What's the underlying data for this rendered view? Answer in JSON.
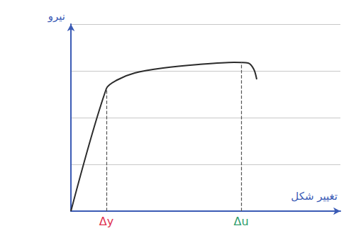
{
  "chart_data": {
    "type": "line",
    "xlabel": "تغییر شکل",
    "ylabel": "نیرو",
    "x": [
      0,
      50,
      65,
      90,
      130,
      180,
      230,
      250,
      258,
      262
    ],
    "values": [
      0,
      173,
      185,
      195,
      202,
      207,
      210,
      209,
      200,
      186
    ],
    "color": "#2b2b2b",
    "xlim": [
      0,
      380
    ],
    "ylim": [
      0,
      264
    ],
    "yticks": [
      0,
      66,
      132,
      198,
      264
    ],
    "grid": true,
    "tick_labels": false,
    "annotations": [
      {
        "text": "Δy",
        "x": 50,
        "y": 173,
        "color": "#e0314f"
      },
      {
        "text": "Δu",
        "x": 240,
        "y": 210,
        "color": "#2f9e6e"
      }
    ]
  }
}
